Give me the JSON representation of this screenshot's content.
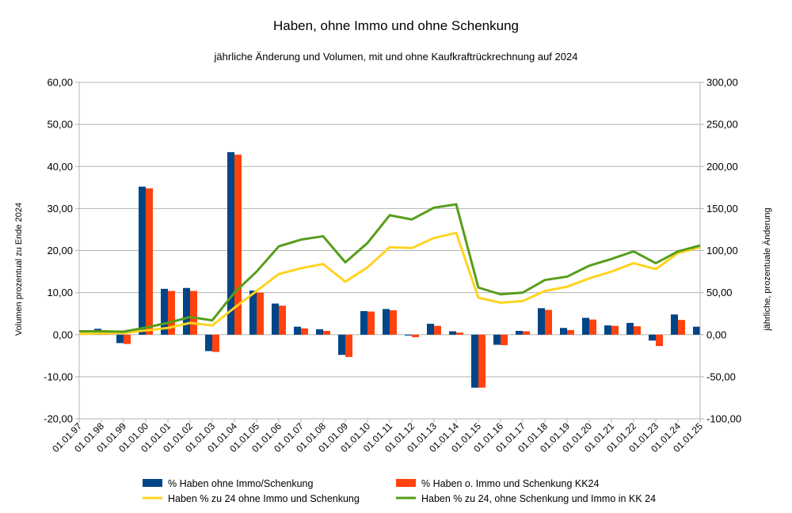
{
  "chart_data": {
    "type": "bar+line",
    "title": "Haben, ohne Immo und ohne Schenkung",
    "subtitle": "jährliche Änderung und Volumen, mit und ohne Kaufkraftrückrechnung auf 2024",
    "ylabel_left": "Volumen prozentual zu Ende 2024",
    "ylabel_right": "jährliche, prozentuale Änderung",
    "ylim_left": [
      -20,
      60
    ],
    "ylim_right": [
      -100,
      300
    ],
    "yticks_left": [
      "-20,00",
      "-10,00",
      "0,00",
      "10,00",
      "20,00",
      "30,00",
      "40,00",
      "50,00",
      "60,00"
    ],
    "yticks_right": [
      "-100,00",
      "-50,00",
      "0,00",
      "50,00",
      "100,00",
      "150,00",
      "200,00",
      "250,00",
      "300,00"
    ],
    "categories": [
      "01.01.97",
      "01.01.98",
      "01.01.99",
      "01.01.00",
      "01.01.01",
      "01.01.02",
      "01.01.03",
      "01.01.04",
      "01.01.05",
      "01.01.06",
      "01.01.07",
      "01.01.08",
      "01.01.09",
      "01.01.10",
      "01.01.11",
      "01.01.12",
      "01.01.13",
      "01.01.14",
      "01.01.15",
      "01.01.16",
      "01.01.17",
      "01.01.18",
      "01.01.19",
      "01.01.20",
      "01.01.21",
      "01.01.22",
      "01.01.23",
      "01.01.24",
      "01.01.25"
    ],
    "legend_position": "bottom",
    "series": [
      {
        "name": "% Haben ohne Immo/Schenkung",
        "kind": "bar",
        "axis": "left",
        "color": "#004586",
        "values": [
          null,
          1.4,
          -2.0,
          35.2,
          10.9,
          11.1,
          -3.9,
          43.4,
          10.5,
          7.4,
          1.9,
          1.3,
          -4.8,
          5.6,
          6.1,
          -0.2,
          2.6,
          0.8,
          -12.6,
          -2.4,
          0.9,
          6.3,
          1.6,
          4.0,
          2.2,
          2.8,
          -1.4,
          4.8,
          1.9
        ]
      },
      {
        "name": "% Haben o. Immo und Schenkung KK24",
        "kind": "bar",
        "axis": "left",
        "color": "#FF420E",
        "values": [
          null,
          0.2,
          -2.2,
          34.8,
          10.4,
          10.4,
          -4.1,
          42.8,
          10.0,
          6.9,
          1.5,
          0.9,
          -5.3,
          5.5,
          5.8,
          -0.6,
          2.1,
          0.5,
          -12.6,
          -2.5,
          0.8,
          5.9,
          1.1,
          3.6,
          2.1,
          2.0,
          -2.7,
          3.5,
          null
        ]
      },
      {
        "name": "Haben % zu 24 ohne Immo und Schenkung",
        "kind": "line",
        "axis": "right",
        "color": "#FFD320",
        "values": [
          1.0,
          1.5,
          2.0,
          5.0,
          8.0,
          14.0,
          11.0,
          32.0,
          52.0,
          72.0,
          79.0,
          84.0,
          63.0,
          80.0,
          104.0,
          103.0,
          115.0,
          121.0,
          44.0,
          38.0,
          40.0,
          52.0,
          57.0,
          67.0,
          75.0,
          85.0,
          78.0,
          97.0,
          104.0
        ]
      },
      {
        "name": "Haben % zu 24, ohne Schenkung und Immo in KK 24",
        "kind": "line",
        "axis": "right",
        "color": "#579D1C",
        "values": [
          4.0,
          4.0,
          3.5,
          8.5,
          14.0,
          21.0,
          17.0,
          50.0,
          75.0,
          105.0,
          113.0,
          117.0,
          86.0,
          109.0,
          142.0,
          137.0,
          151.0,
          155.0,
          56.0,
          48.0,
          50.0,
          65.0,
          69.0,
          82.0,
          90.0,
          99.0,
          85.0,
          99.0,
          106.0
        ]
      }
    ]
  }
}
